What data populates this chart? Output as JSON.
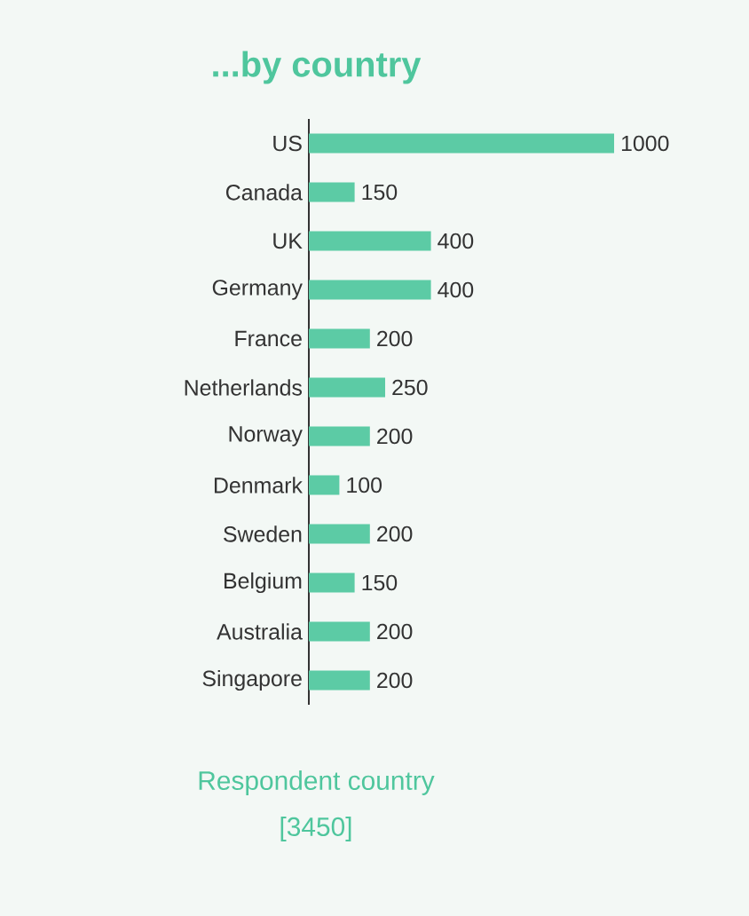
{
  "chart_data": {
    "type": "bar",
    "orientation": "horizontal",
    "title": "...by country",
    "xlabel": "Respondent country",
    "annotations": [
      "[3450]"
    ],
    "categories": [
      "US",
      "Canada",
      "UK",
      "Germany",
      "France",
      "Netherlands",
      "Norway",
      "Denmark",
      "Sweden",
      "Belgium",
      "Australia",
      "Singapore"
    ],
    "values": [
      1000,
      150,
      400,
      400,
      200,
      250,
      200,
      100,
      200,
      150,
      200,
      200
    ],
    "color": "#5ccba5",
    "data_labels": true
  }
}
